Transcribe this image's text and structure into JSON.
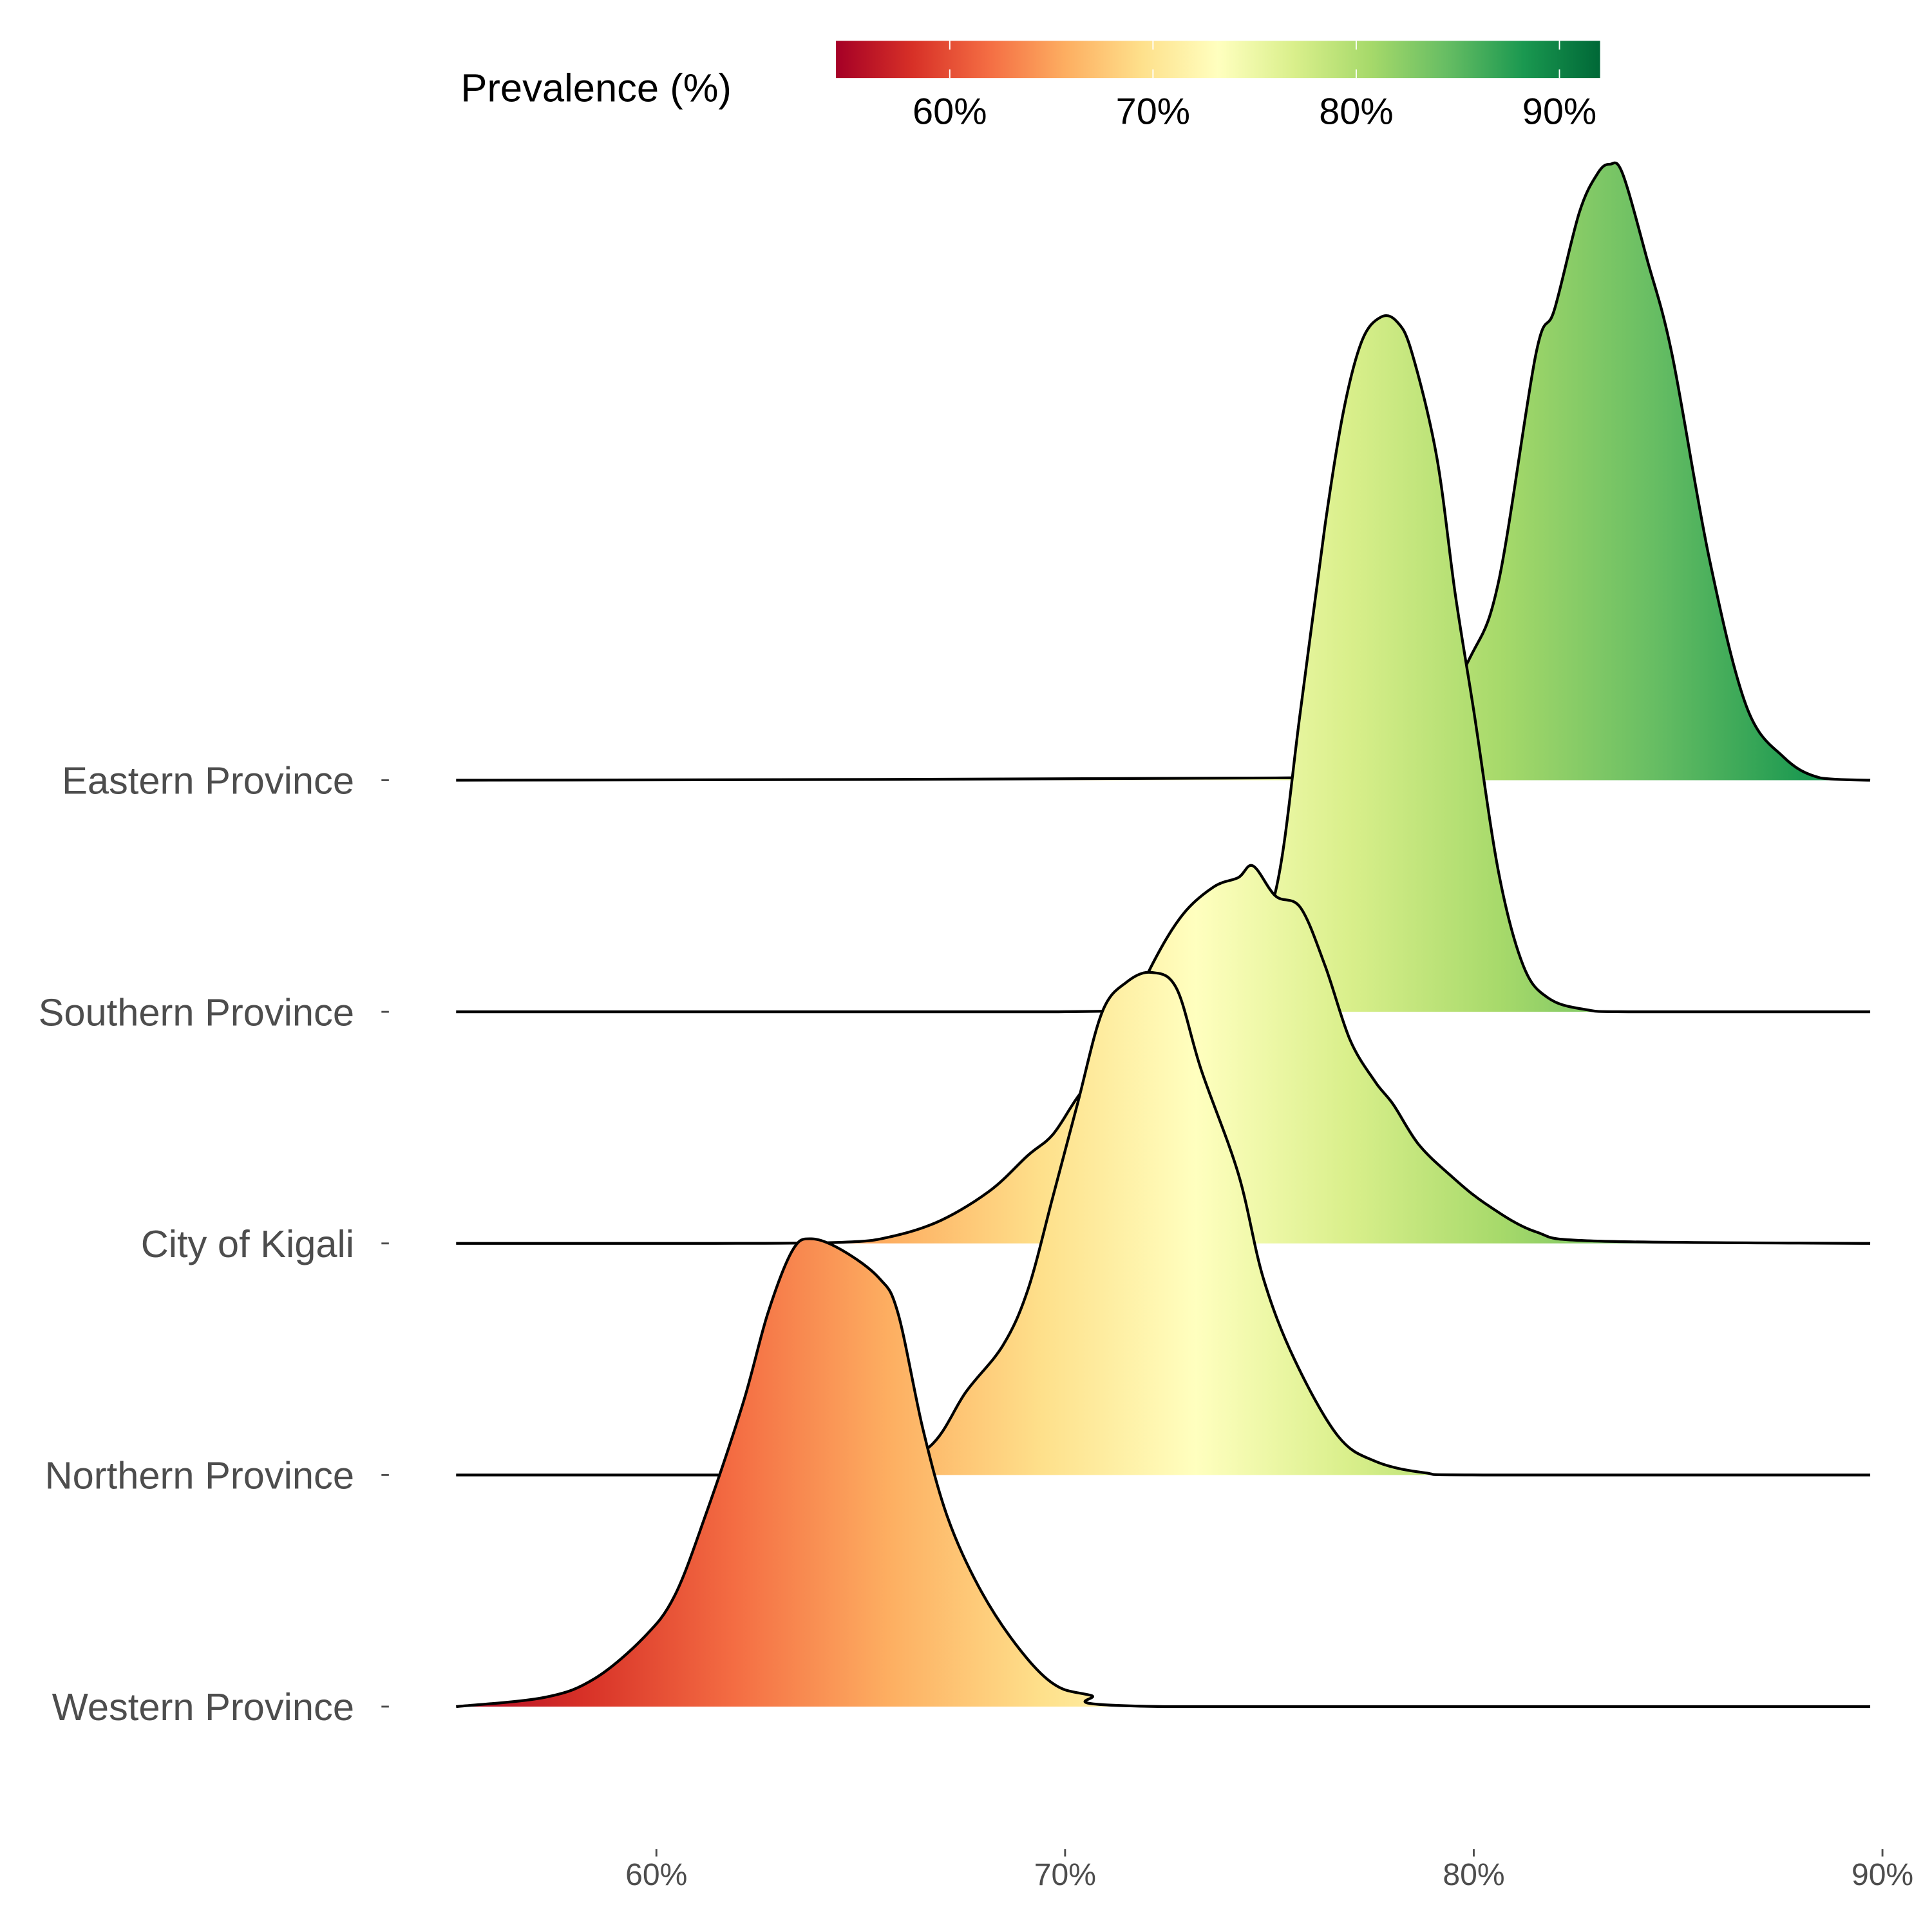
{
  "chart_data": {
    "type": "area",
    "subtype": "ridgeline-density",
    "title": "",
    "xlabel": "",
    "ylabel": "",
    "xlim": [
      55.1,
      89.7
    ],
    "x_ticks": [
      60,
      70,
      80,
      90
    ],
    "x_tick_labels": [
      "60%",
      "70%",
      "80%",
      "90%"
    ],
    "grid": false,
    "legend": {
      "title": "Prevalence (%)",
      "placement": "top",
      "type": "colorbar",
      "range": [
        54.4,
        92.0
      ],
      "tick_labels": [
        "60%",
        "70%",
        "80%",
        "90%"
      ],
      "ticks": [
        60,
        70,
        80,
        90
      ],
      "colors": [
        "#a50026",
        "#d73027",
        "#f46d43",
        "#fdae61",
        "#fee08b",
        "#ffffbf",
        "#d9ef8b",
        "#a6d96a",
        "#66bd63",
        "#1a9850",
        "#006837"
      ]
    },
    "series": [
      {
        "name": "Eastern Province",
        "points": [
          [
            55.1,
            0
          ],
          [
            75.15,
            0.01
          ],
          [
            77.27,
            0.04
          ],
          [
            78.79,
            0.21
          ],
          [
            79.91,
            0.53
          ],
          [
            80.61,
            0.86
          ],
          [
            81.52,
            1.84
          ],
          [
            81.97,
            2.03
          ],
          [
            82.58,
            2.45
          ],
          [
            83.03,
            2.62
          ],
          [
            83.33,
            2.66
          ],
          [
            83.64,
            2.62
          ],
          [
            84.24,
            2.25
          ],
          [
            84.85,
            1.84
          ],
          [
            85.76,
            0.96
          ],
          [
            86.67,
            0.32
          ],
          [
            87.58,
            0.1
          ],
          [
            88.48,
            0.01
          ],
          [
            89.7,
            0
          ]
        ]
      },
      {
        "name": "Southern Province",
        "points": [
          [
            55.1,
            0
          ],
          [
            69.7,
            0
          ],
          [
            72.73,
            0.03
          ],
          [
            74.24,
            0.15
          ],
          [
            75.15,
            0.52
          ],
          [
            75.76,
            1.3
          ],
          [
            76.36,
            2.1
          ],
          [
            76.82,
            2.6
          ],
          [
            77.27,
            2.9
          ],
          [
            77.73,
            3.0
          ],
          [
            78.12,
            2.98
          ],
          [
            78.48,
            2.85
          ],
          [
            79.09,
            2.4
          ],
          [
            79.55,
            1.8
          ],
          [
            80.0,
            1.3
          ],
          [
            80.61,
            0.6
          ],
          [
            81.21,
            0.2
          ],
          [
            81.82,
            0.06
          ],
          [
            82.73,
            0.01
          ],
          [
            83.94,
            0
          ],
          [
            89.7,
            0
          ]
        ]
      },
      {
        "name": "City of Kigali",
        "points": [
          [
            55.1,
            0
          ],
          [
            61.2,
            0
          ],
          [
            64.55,
            0.005
          ],
          [
            65.76,
            0.03
          ],
          [
            66.97,
            0.1
          ],
          [
            68.18,
            0.23
          ],
          [
            69.09,
            0.38
          ],
          [
            69.7,
            0.47
          ],
          [
            70.3,
            0.63
          ],
          [
            71.21,
            0.85
          ],
          [
            72.12,
            1.2
          ],
          [
            72.88,
            1.42
          ],
          [
            73.64,
            1.54
          ],
          [
            74.24,
            1.58
          ],
          [
            74.6,
            1.63
          ],
          [
            75.15,
            1.5
          ],
          [
            75.76,
            1.45
          ],
          [
            76.36,
            1.2
          ],
          [
            76.97,
            0.88
          ],
          [
            77.58,
            0.7
          ],
          [
            78.03,
            0.6
          ],
          [
            78.64,
            0.43
          ],
          [
            79.39,
            0.3
          ],
          [
            80.3,
            0.17
          ],
          [
            81.52,
            0.05
          ],
          [
            83.03,
            0.01
          ],
          [
            89.7,
            0
          ]
        ]
      },
      {
        "name": "Northern Province",
        "points": [
          [
            55.1,
            0
          ],
          [
            65.15,
            0
          ],
          [
            66.67,
            0.12
          ],
          [
            67.58,
            0.36
          ],
          [
            68.48,
            0.56
          ],
          [
            69.09,
            0.8
          ],
          [
            69.7,
            1.2
          ],
          [
            70.3,
            1.6
          ],
          [
            70.91,
            2.0
          ],
          [
            71.52,
            2.13
          ],
          [
            72.12,
            2.17
          ],
          [
            72.73,
            2.1
          ],
          [
            73.33,
            1.75
          ],
          [
            74.24,
            1.3
          ],
          [
            74.85,
            0.85
          ],
          [
            75.61,
            0.5
          ],
          [
            76.67,
            0.17
          ],
          [
            77.58,
            0.06
          ],
          [
            78.79,
            0.01
          ],
          [
            80.3,
            0
          ],
          [
            89.7,
            0
          ]
        ]
      },
      {
        "name": "Western Province",
        "points": [
          [
            55.1,
            0
          ],
          [
            57.27,
            0.04
          ],
          [
            58.48,
            0.12
          ],
          [
            59.7,
            0.3
          ],
          [
            60.45,
            0.48
          ],
          [
            61.21,
            0.83
          ],
          [
            62.12,
            1.31
          ],
          [
            62.73,
            1.7
          ],
          [
            63.33,
            1.97
          ],
          [
            63.79,
            2.02
          ],
          [
            64.55,
            1.97
          ],
          [
            65.45,
            1.85
          ],
          [
            65.91,
            1.7
          ],
          [
            66.52,
            1.2
          ],
          [
            67.12,
            0.82
          ],
          [
            67.88,
            0.52
          ],
          [
            68.79,
            0.27
          ],
          [
            69.7,
            0.1
          ],
          [
            70.6,
            0.05
          ],
          [
            72.42,
            0
          ],
          [
            89.7,
            0
          ]
        ]
      }
    ]
  }
}
